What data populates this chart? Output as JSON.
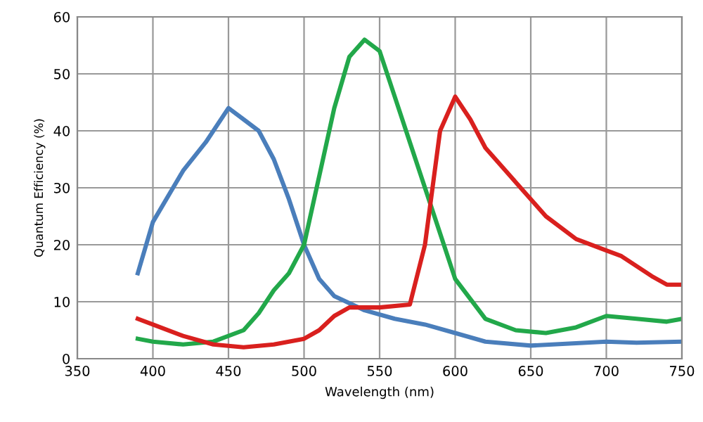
{
  "chart_data": {
    "type": "line",
    "xlabel": "Wavelength (nm)",
    "ylabel": "Quantum Efficiency (%)",
    "xlim": [
      350,
      750
    ],
    "xticks": [
      350,
      400,
      450,
      500,
      550,
      600,
      650,
      700,
      750
    ],
    "ylim": [
      0,
      60
    ],
    "yticks": [
      0,
      10,
      20,
      30,
      40,
      50,
      60
    ],
    "grid": true,
    "series": [
      {
        "color": "#4a7ebb",
        "x": [
          390,
          400,
          420,
          435,
          450,
          460,
          470,
          480,
          490,
          500,
          510,
          520,
          540,
          560,
          580,
          600,
          620,
          650,
          700,
          720,
          750
        ],
        "values": [
          15,
          24,
          33,
          38,
          44,
          42,
          40,
          35,
          28,
          20,
          14,
          11,
          8.5,
          7,
          6,
          4.5,
          3,
          2.3,
          3,
          2.8,
          3
        ]
      },
      {
        "color": "#22a84a",
        "x": [
          390,
          400,
          420,
          440,
          460,
          470,
          480,
          490,
          500,
          510,
          520,
          530,
          540,
          550,
          560,
          570,
          580,
          590,
          600,
          620,
          640,
          660,
          680,
          700,
          720,
          740,
          750
        ],
        "values": [
          3.5,
          3,
          2.5,
          3,
          5,
          8,
          12,
          15,
          20,
          32,
          44,
          53,
          56,
          54,
          46,
          38,
          30,
          22,
          14,
          7,
          5,
          4.5,
          5.5,
          7.5,
          7,
          6.5,
          7
        ]
      },
      {
        "color": "#d9201e",
        "x": [
          390,
          400,
          420,
          440,
          460,
          480,
          500,
          510,
          520,
          530,
          550,
          570,
          580,
          590,
          600,
          610,
          620,
          640,
          660,
          680,
          700,
          710,
          730,
          740,
          750
        ],
        "values": [
          7,
          6,
          4,
          2.5,
          2,
          2.5,
          3.5,
          5,
          7.5,
          9,
          9,
          9.5,
          20,
          40,
          46,
          42,
          37,
          31,
          25,
          21,
          19,
          18,
          14.5,
          13,
          13
        ]
      }
    ]
  }
}
